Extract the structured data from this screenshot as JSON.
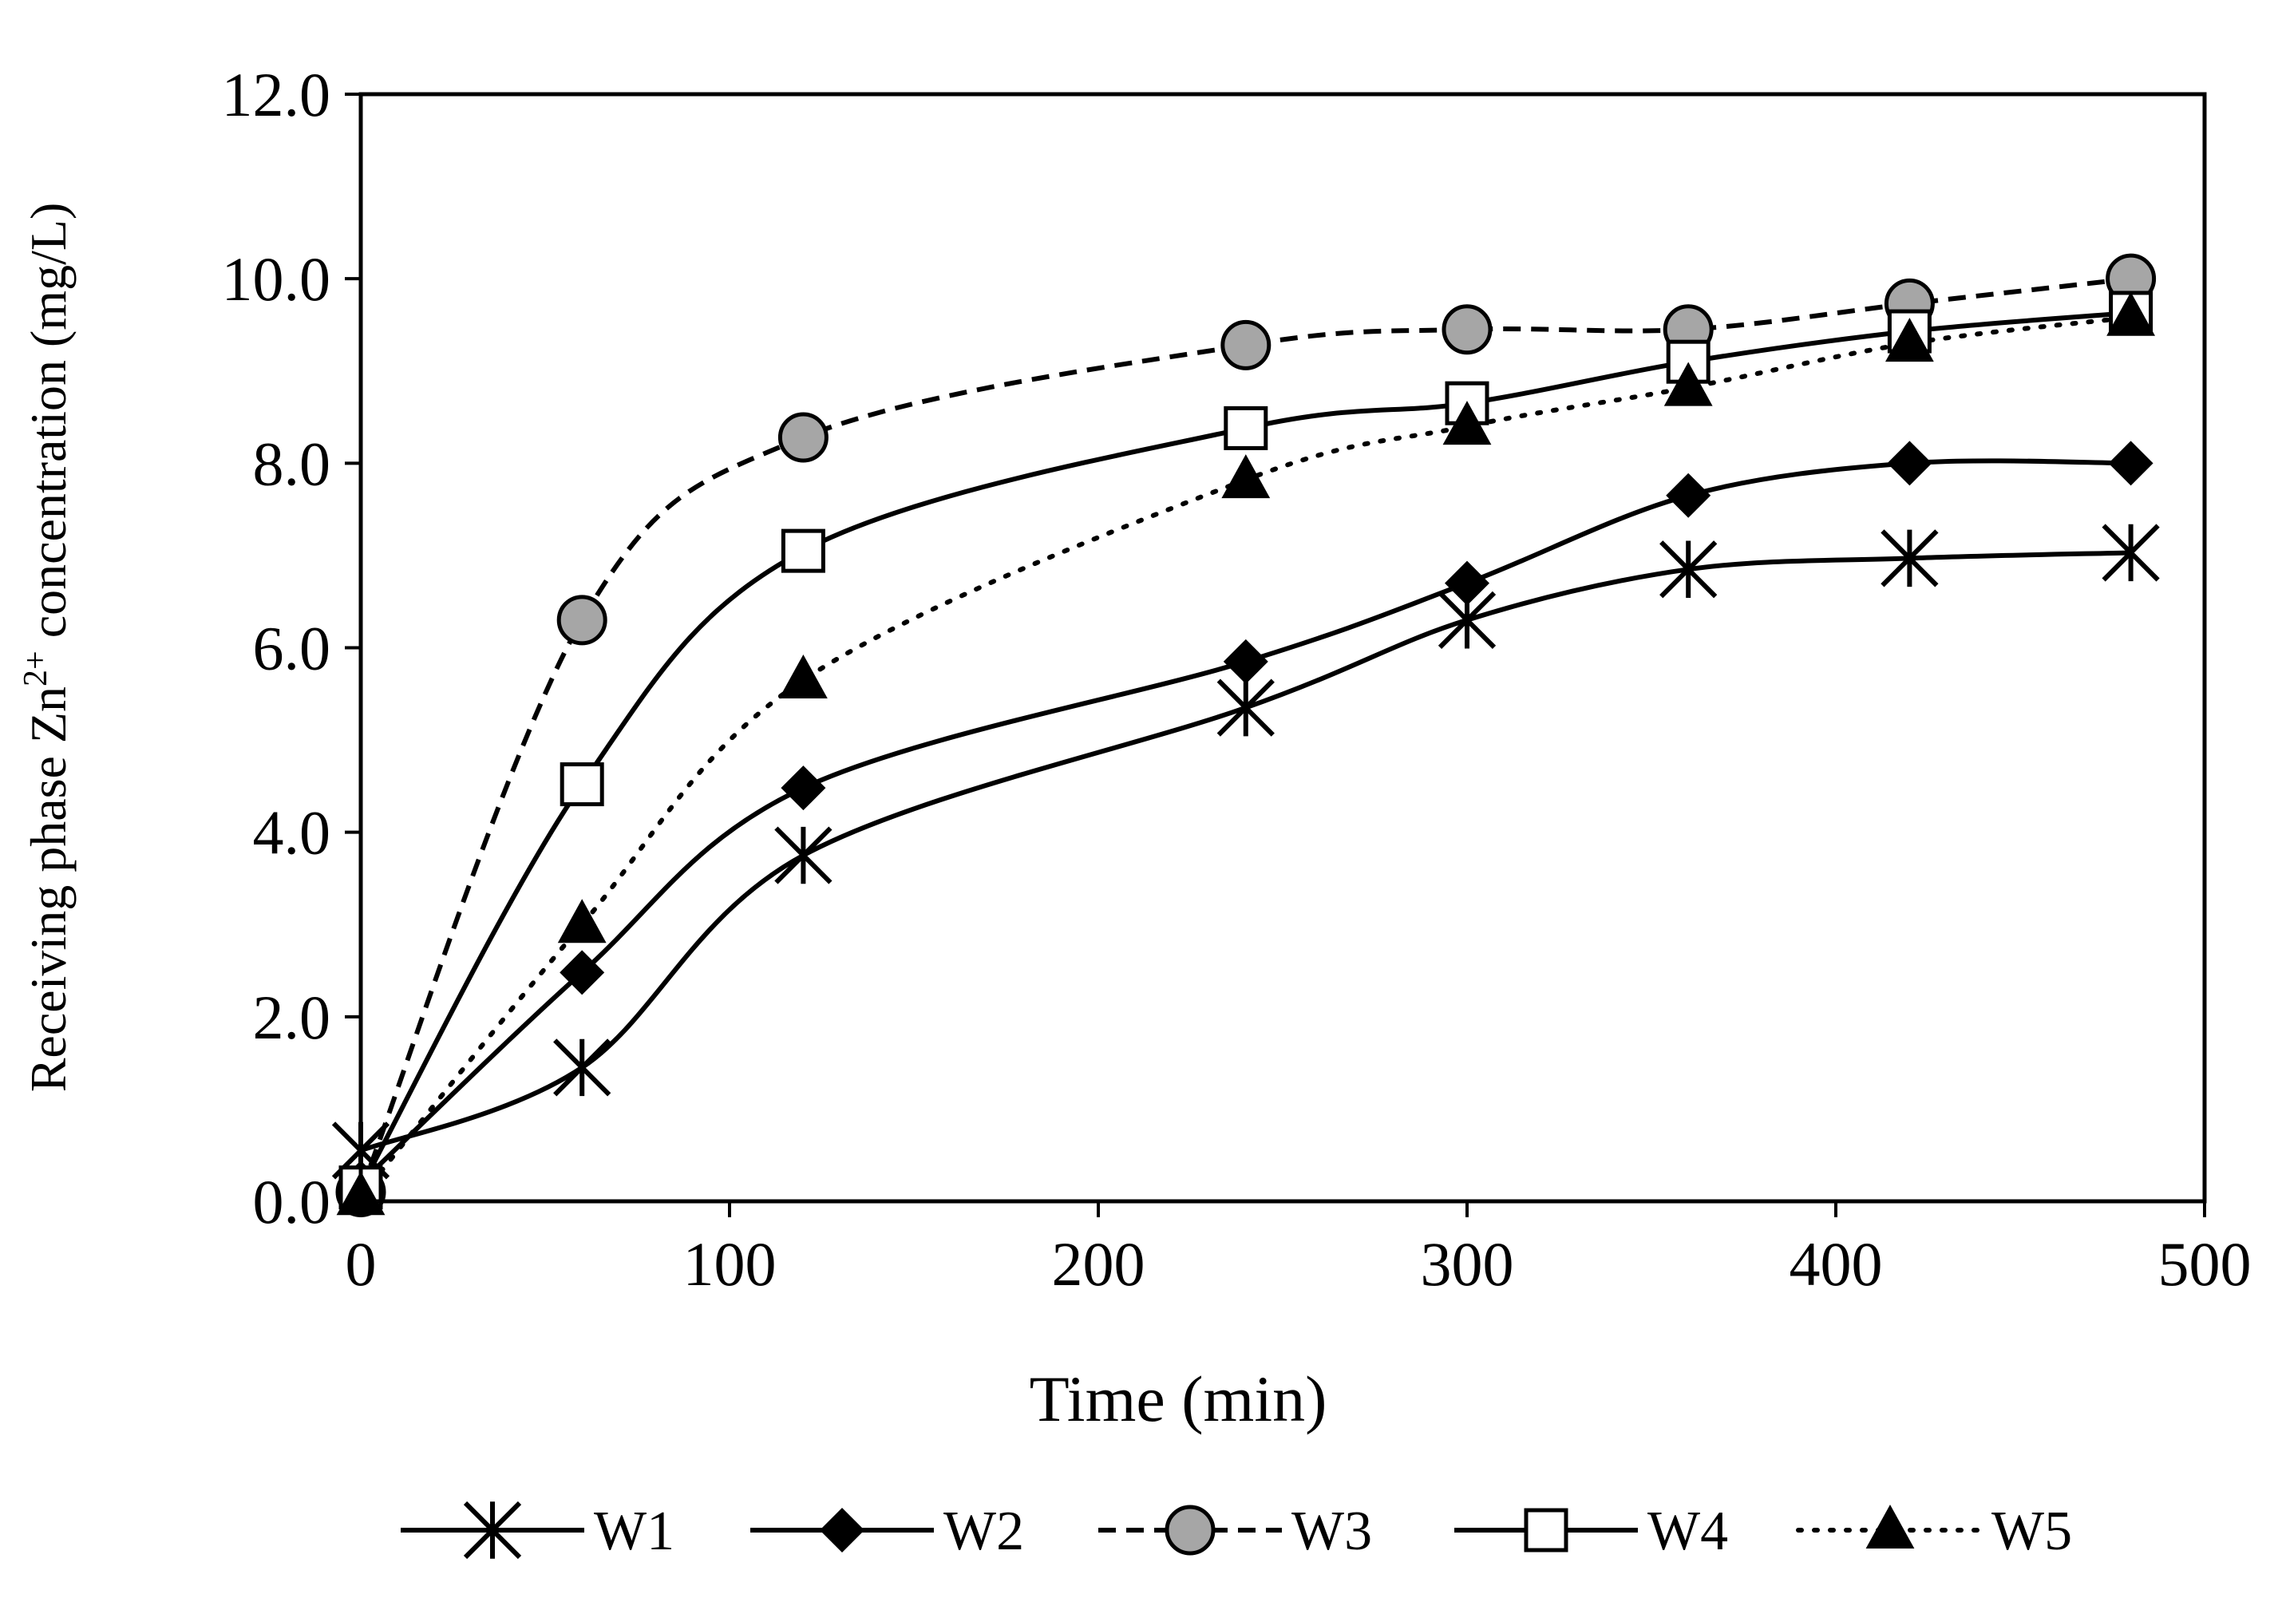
{
  "chart_data": {
    "type": "line",
    "title": "",
    "xlabel": "Time (min)",
    "ylabel": {
      "prefix": "Receiving phase Zn",
      "sup": "2+",
      "suffix": " concentration (mg/L)"
    },
    "xlim": [
      0,
      500
    ],
    "ylim": [
      0,
      12
    ],
    "xticks": [
      0,
      100,
      200,
      300,
      400,
      500
    ],
    "xtick_labels": [
      "0",
      "100",
      "200",
      "300",
      "400",
      "500"
    ],
    "yticks": [
      0,
      2,
      4,
      6,
      8,
      10,
      12
    ],
    "ytick_labels": [
      "0.0",
      "2.0",
      "4.0",
      "6.0",
      "8.0",
      "10.0",
      "12.0"
    ],
    "grid": false,
    "legend_position": "bottom",
    "x": [
      0,
      60,
      120,
      240,
      300,
      360,
      420,
      480
    ],
    "series": [
      {
        "name": "W1",
        "marker": "asterisk",
        "line": "solid",
        "values": [
          0.55,
          1.45,
          3.75,
          5.35,
          6.3,
          6.85,
          6.97,
          7.03
        ]
      },
      {
        "name": "W2",
        "marker": "diamond",
        "line": "solid",
        "values": [
          0.2,
          2.48,
          4.48,
          5.85,
          6.7,
          7.65,
          8.0,
          8.0
        ]
      },
      {
        "name": "W3",
        "marker": "circle",
        "line": "dashed",
        "values": [
          0.1,
          6.3,
          8.28,
          9.28,
          9.45,
          9.45,
          9.73,
          10.0
        ]
      },
      {
        "name": "W4",
        "marker": "square",
        "line": "solid",
        "values": [
          0.15,
          4.52,
          7.05,
          8.38,
          8.65,
          9.1,
          9.43,
          9.63
        ]
      },
      {
        "name": "W5",
        "marker": "triangle",
        "line": "dotted",
        "values": [
          0.05,
          3.0,
          5.65,
          7.82,
          8.4,
          8.82,
          9.3,
          9.58
        ]
      }
    ],
    "colors": {
      "line": "#000000",
      "circle_fill": "#a6a6a6",
      "square_fill": "#ffffff"
    }
  }
}
